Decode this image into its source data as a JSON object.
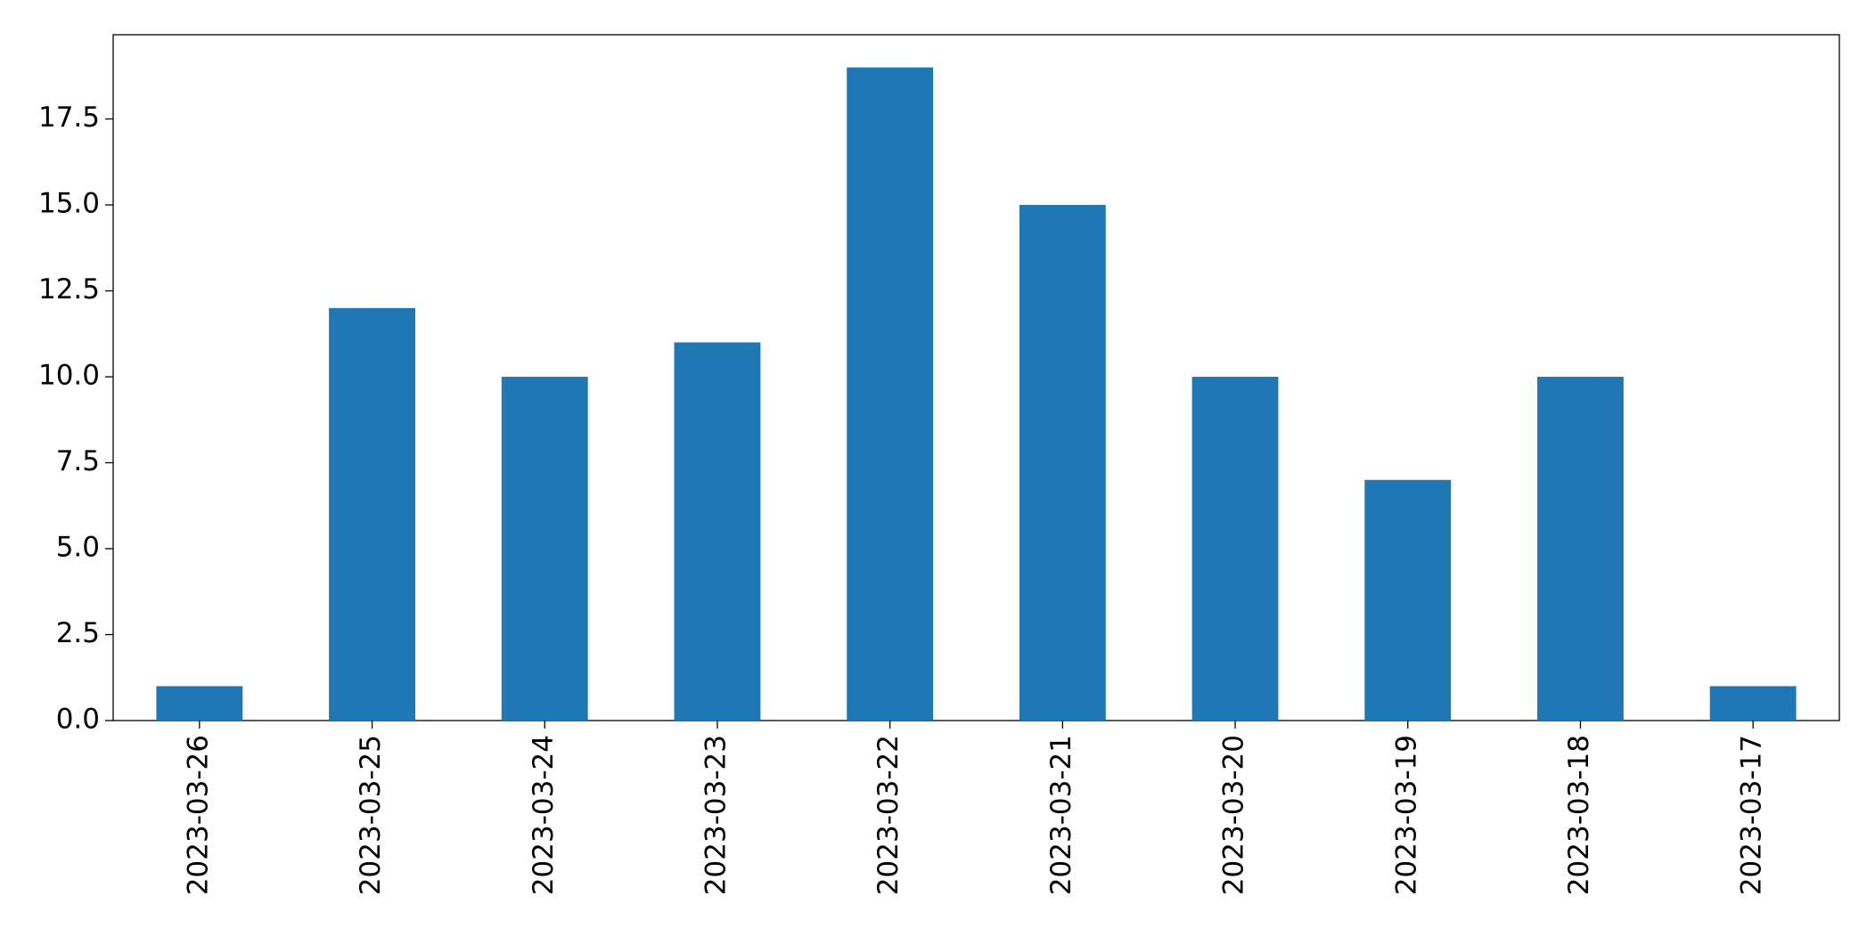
{
  "chart_data": {
    "type": "bar",
    "categories": [
      "2023-03-26",
      "2023-03-25",
      "2023-03-24",
      "2023-03-23",
      "2023-03-22",
      "2023-03-21",
      "2023-03-20",
      "2023-03-19",
      "2023-03-18",
      "2023-03-17"
    ],
    "values": [
      1,
      12,
      10,
      11,
      19,
      15,
      10,
      7,
      10,
      1
    ],
    "color": "#1f77b4",
    "ylim": [
      0,
      19.95
    ],
    "yticks": [
      {
        "value": 0,
        "label": "0.0"
      },
      2.5,
      {
        "value": 5,
        "label": "5.0"
      },
      7.5,
      {
        "value": 10,
        "label": "10.0"
      },
      12.5,
      {
        "value": 15,
        "label": "15.0"
      },
      17.5
    ],
    "grid": false
  }
}
